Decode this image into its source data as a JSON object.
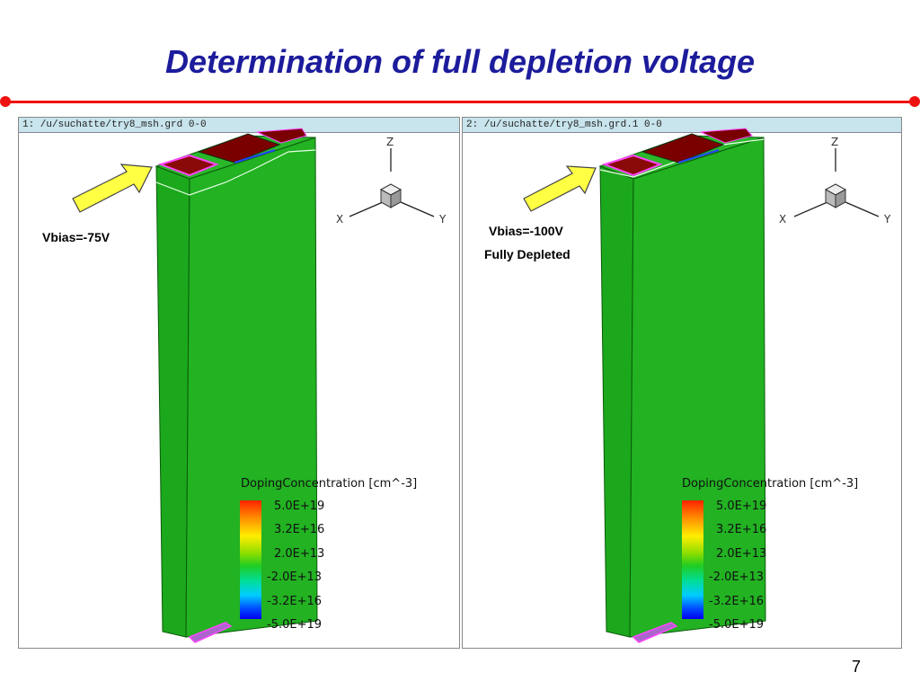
{
  "slide": {
    "title": "Determination of full depletion voltage",
    "page_number": "7"
  },
  "panels": [
    {
      "header": "1: /u/suchatte/try8_msh.grd 0-0",
      "bias_lines": [
        "Vbias=-75V"
      ],
      "axes": {
        "z": "Z",
        "x": "X",
        "y": "Y"
      },
      "legend": {
        "title": "DopingConcentration [cm^-3]",
        "ticks": [
          "5.0E+19",
          "3.2E+16",
          "2.0E+13",
          "-2.0E+13",
          "-3.2E+16",
          "-5.0E+19"
        ]
      }
    },
    {
      "header": "2: /u/suchatte/try8_msh.grd.1 0-0",
      "bias_lines": [
        "Vbias=-100V",
        "Fully Depleted"
      ],
      "axes": {
        "z": "Z",
        "x": "X",
        "y": "Y"
      },
      "legend": {
        "title": "DopingConcentration [cm^-3]",
        "ticks": [
          "5.0E+19",
          "3.2E+16",
          "2.0E+13",
          "-2.0E+13",
          "-3.2E+16",
          "-5.0E+19"
        ]
      }
    }
  ],
  "colors": {
    "title": "#1c1c9c",
    "divider": "#ee1111",
    "device_body": "#1faa1f",
    "electrode": "#7a0000",
    "arrow": "#ffff44"
  }
}
